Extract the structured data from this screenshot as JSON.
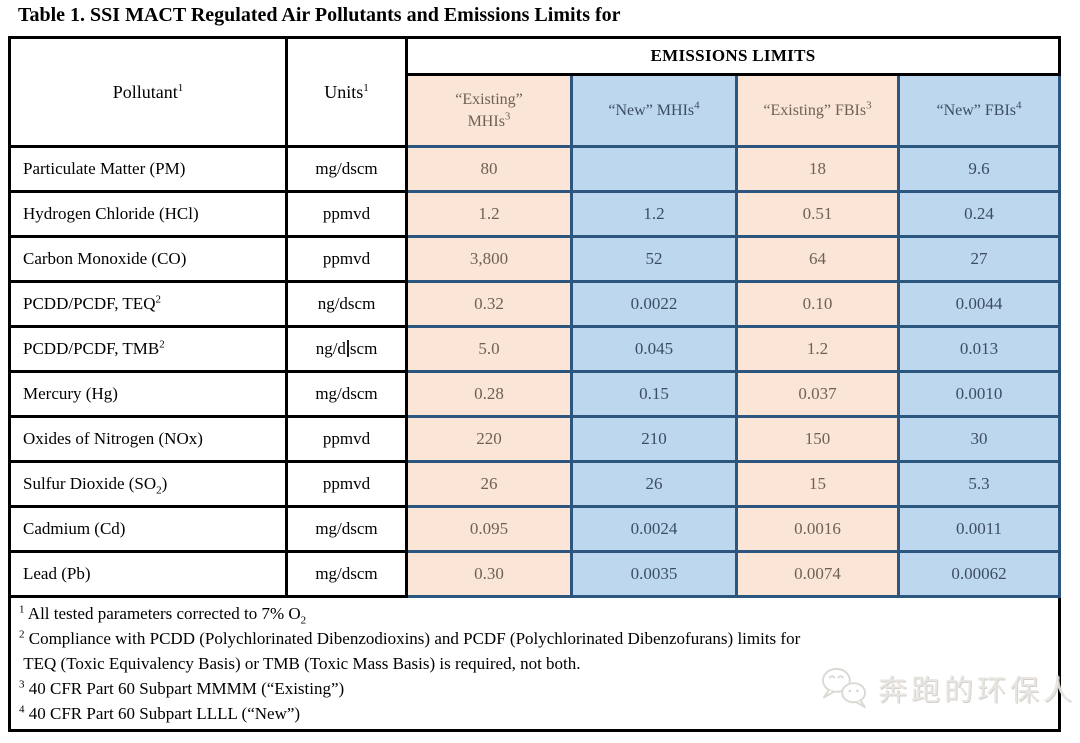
{
  "title": "Table 1. SSI MACT Regulated Air Pollutants and Emissions Limits for",
  "colors": {
    "peach_fill": "#fbe5d6",
    "blue_fill": "#bdd7ee",
    "colored_grid": "#2d567f",
    "black_grid": "#000000"
  },
  "table": {
    "header": {
      "pollutant": {
        "label": "Pollutant",
        "sup": "1"
      },
      "units": {
        "label": "Units",
        "sup": "1"
      },
      "emissions_limits": "EMISSIONS LIMITS",
      "columns": [
        {
          "line1": "“Existing”",
          "line2": "MHIs",
          "sup": "3",
          "style": "peach"
        },
        {
          "label": "“New” MHIs",
          "sup": "4",
          "style": "blue"
        },
        {
          "label": "“Existing” FBIs",
          "sup": "3",
          "style": "peach"
        },
        {
          "label": "“New” FBIs",
          "sup": "4",
          "style": "blue"
        }
      ]
    },
    "rows": [
      {
        "pollutant": [
          {
            "v": "Particulate Matter (PM)"
          }
        ],
        "units": [
          {
            "v": "mg/dscm"
          }
        ],
        "values": [
          "80",
          "",
          "18",
          "9.6"
        ]
      },
      {
        "pollutant": [
          {
            "v": "Hydrogen Chloride (HCl)"
          }
        ],
        "units": [
          {
            "v": "ppmvd"
          }
        ],
        "values": [
          "1.2",
          "1.2",
          "0.51",
          "0.24"
        ]
      },
      {
        "pollutant": [
          {
            "v": "Carbon Monoxide (CO)"
          }
        ],
        "units": [
          {
            "v": "ppmvd"
          }
        ],
        "values": [
          "3,800",
          "52",
          "64",
          "27"
        ]
      },
      {
        "pollutant": [
          {
            "v": "PCDD/PCDF, TEQ"
          },
          {
            "t": "sup",
            "v": "2"
          }
        ],
        "units": [
          {
            "v": "ng/dscm"
          }
        ],
        "values": [
          "0.32",
          "0.0022",
          "0.10",
          "0.0044"
        ]
      },
      {
        "pollutant": [
          {
            "v": "PCDD/PCDF, TMB"
          },
          {
            "t": "sup",
            "v": "2"
          }
        ],
        "units": [
          {
            "v": "ng/d"
          },
          {
            "t": "caret"
          },
          {
            "v": "scm"
          }
        ],
        "values": [
          "5.0",
          "0.045",
          "1.2",
          "0.013"
        ]
      },
      {
        "pollutant": [
          {
            "v": "Mercury (Hg)"
          }
        ],
        "units": [
          {
            "v": "mg/dscm"
          }
        ],
        "values": [
          "0.28",
          "0.15",
          "0.037",
          "0.0010"
        ]
      },
      {
        "pollutant": [
          {
            "v": "Oxides of Nitrogen (NOx)"
          }
        ],
        "units": [
          {
            "v": "ppmvd"
          }
        ],
        "values": [
          "220",
          "210",
          "150",
          "30"
        ]
      },
      {
        "pollutant": [
          {
            "v": "Sulfur Dioxide (SO"
          },
          {
            "t": "sub",
            "v": "2"
          },
          {
            "v": ")"
          }
        ],
        "units": [
          {
            "v": "ppmvd"
          }
        ],
        "values": [
          "26",
          "26",
          "15",
          "5.3"
        ]
      },
      {
        "pollutant": [
          {
            "v": "Cadmium (Cd)"
          }
        ],
        "units": [
          {
            "v": "mg/dscm"
          }
        ],
        "values": [
          "0.095",
          "0.0024",
          "0.0016",
          "0.0011"
        ]
      },
      {
        "pollutant": [
          {
            "v": "Lead (Pb)"
          }
        ],
        "units": [
          {
            "v": "mg/dscm"
          }
        ],
        "values": [
          "0.30",
          "0.0035",
          "0.0074",
          "0.00062"
        ]
      }
    ]
  },
  "footnotes": [
    {
      "sup": "1",
      "parts": [
        {
          "v": " All tested parameters corrected to 7% O"
        },
        {
          "t": "sub",
          "v": "2"
        }
      ]
    },
    {
      "sup": "2",
      "parts": [
        {
          "v": " Compliance with PCDD (Polychlorinated Dibenzodioxins) and PCDF (Polychlorinated Dibenzofurans) limits for"
        },
        {
          "t": "br"
        },
        {
          "v": " TEQ (Toxic Equivalency Basis) or TMB (Toxic Mass Basis) is required, not both."
        }
      ]
    },
    {
      "sup": "3",
      "parts": [
        {
          "v": " 40 CFR Part 60 Subpart MMMM (“Existing”)"
        }
      ]
    },
    {
      "sup": "4",
      "parts": [
        {
          "v": " 40 CFR Part 60 Subpart LLLL (“New”)"
        }
      ]
    }
  ],
  "watermark": {
    "icon": "wechat-icon",
    "text": "奔跑的环保人"
  }
}
